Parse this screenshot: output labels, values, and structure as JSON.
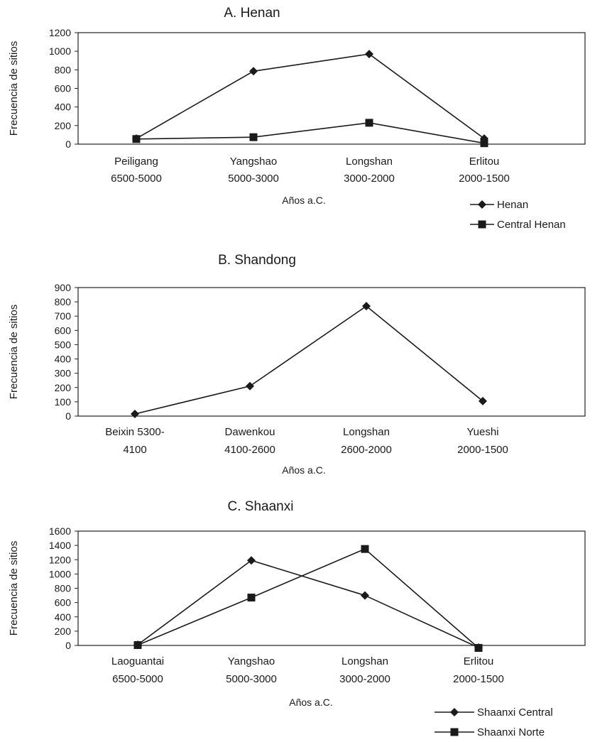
{
  "chart_data": [
    {
      "type": "line",
      "title": "A. Henan",
      "xlabel": "Años a.C.",
      "ylabel": "Frecuencia de sitios",
      "ylim": [
        0,
        1200
      ],
      "yticks": [
        0,
        200,
        400,
        600,
        800,
        1000,
        1200
      ],
      "categories": [
        [
          "Peiligang",
          "6500-5000"
        ],
        [
          "Yangshao",
          "5000-3000"
        ],
        [
          "Longshan",
          "3000-2000"
        ],
        [
          "Erlitou",
          "2000-1500"
        ]
      ],
      "series": [
        {
          "name": "Henan",
          "marker": "diamond",
          "values": [
            60,
            785,
            970,
            60
          ]
        },
        {
          "name": "Central Henan",
          "marker": "square",
          "values": [
            55,
            75,
            230,
            10
          ]
        }
      ],
      "grid": false,
      "legend": "bottom-right"
    },
    {
      "type": "line",
      "title": "B. Shandong",
      "xlabel": "Años a.C.",
      "ylabel": "Frecuencia de sitios",
      "ylim": [
        0,
        900
      ],
      "yticks": [
        0,
        100,
        200,
        300,
        400,
        500,
        600,
        700,
        800,
        900
      ],
      "categories": [
        [
          "Beixin 5300-",
          "4100"
        ],
        [
          "Dawenkou",
          "4100-2600"
        ],
        [
          "Longshan",
          "2600-2000"
        ],
        [
          "Yueshi",
          "2000-1500"
        ]
      ],
      "series": [
        {
          "name": "",
          "marker": "diamond",
          "values": [
            15,
            210,
            770,
            105
          ]
        }
      ],
      "grid": false,
      "legend": "none"
    },
    {
      "type": "line",
      "title": "C. Shaanxi",
      "xlabel": "Años a.C.",
      "ylabel": "Frecuencia de sitios",
      "ylim": [
        0,
        1600
      ],
      "yticks": [
        0,
        200,
        400,
        600,
        800,
        1000,
        1200,
        1400,
        1600
      ],
      "categories": [
        [
          "Laoguantai",
          "6500-5000"
        ],
        [
          "Yangshao",
          "5000-3000"
        ],
        [
          "Longshan",
          "3000-2000"
        ],
        [
          "Erlitou",
          "2000-1500"
        ]
      ],
      "series": [
        {
          "name": "Shaanxi Central",
          "marker": "diamond",
          "values": [
            10,
            1190,
            700,
            -30
          ]
        },
        {
          "name": "Shaanxi Norte",
          "marker": "square",
          "values": [
            5,
            670,
            1350,
            -35
          ]
        }
      ],
      "grid": false,
      "legend": "bottom-right"
    }
  ]
}
